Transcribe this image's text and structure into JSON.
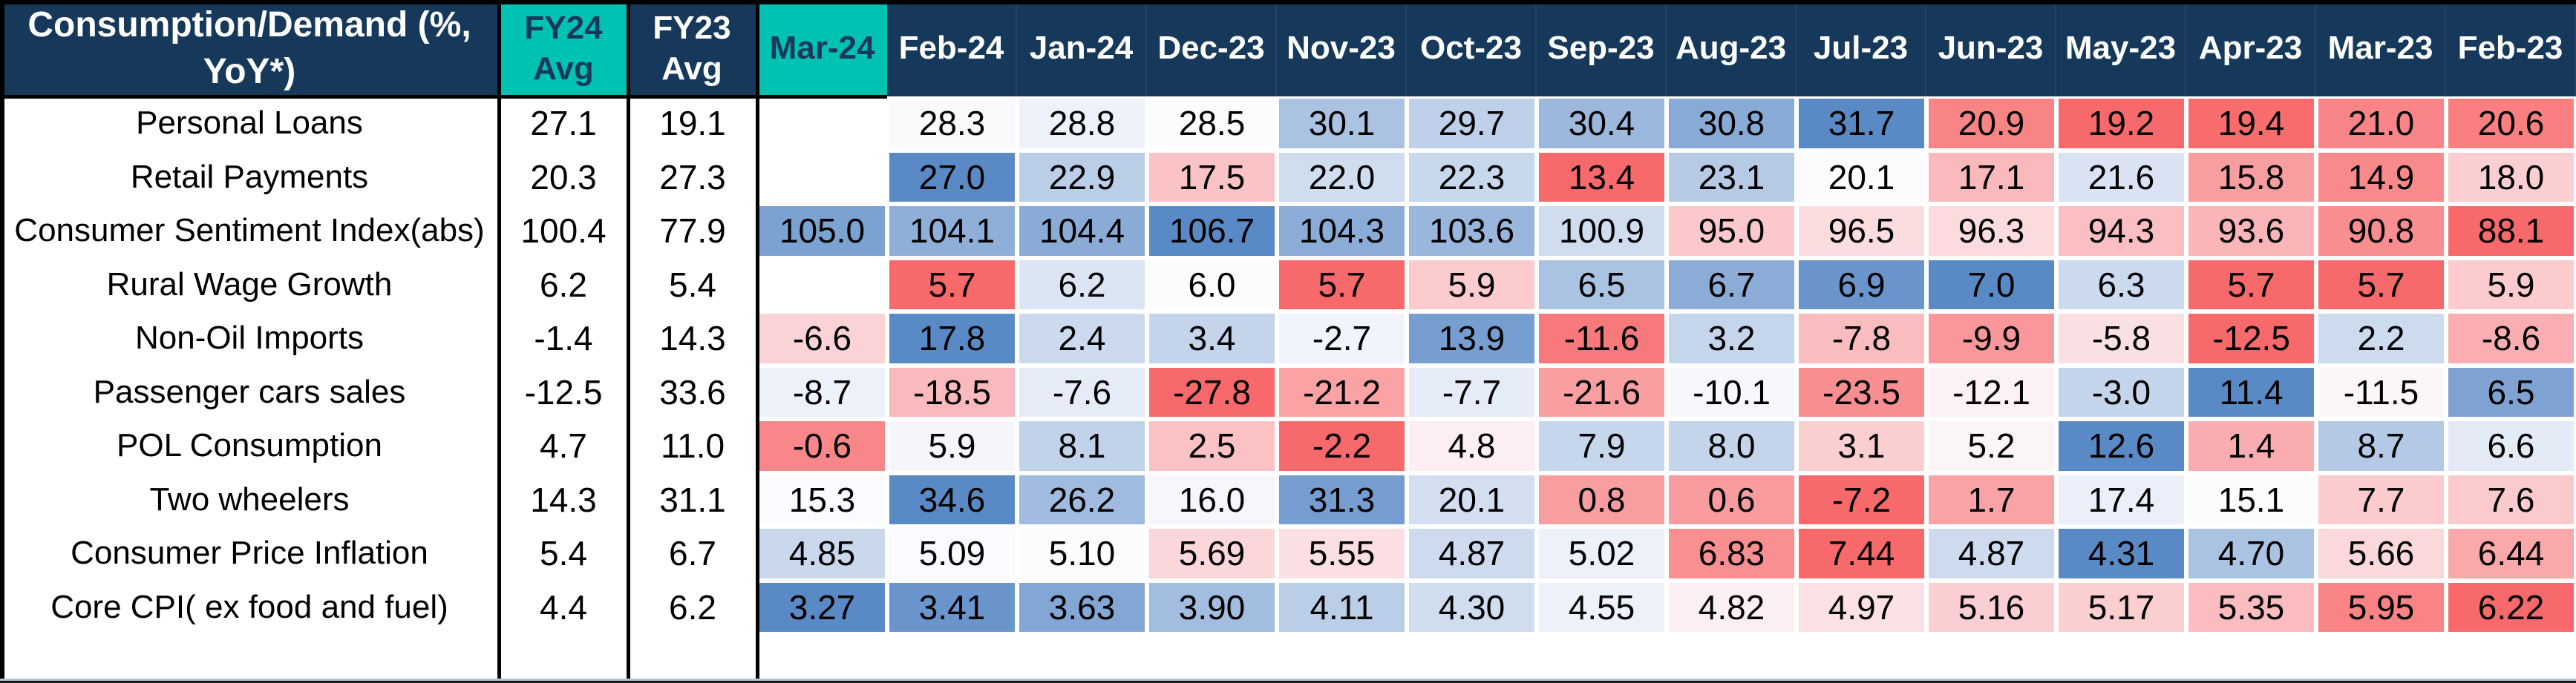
{
  "colors": {
    "header_navy": "#16395B",
    "header_teal": "#00C2B3",
    "header_text": "#FFFFFF",
    "teal_header_text": "#16395B",
    "cell_text": "#000000",
    "border_black": "#000000",
    "bottom_strip_light": "#B3C6D4",
    "bottom_strip_dark": "#1A1A1A"
  },
  "chart_data": {
    "type": "heatmap",
    "title": "Consumption/Demand (%, YoY*)",
    "corner_label": "Consumption/Demand (%, YoY*)",
    "avg_columns": [
      "FY24 Avg",
      "FY23 Avg"
    ],
    "columns": [
      "Mar-24",
      "Feb-24",
      "Jan-24",
      "Dec-23",
      "Nov-23",
      "Oct-23",
      "Sep-23",
      "Aug-23",
      "Jul-23",
      "Jun-23",
      "May-23",
      "Apr-23",
      "Mar-23",
      "Feb-23"
    ],
    "teal_headers": [
      "FY24 Avg",
      "Mar-24"
    ],
    "color_scale": {
      "low": "#F8696B",
      "mid": "#FCFCFF",
      "high": "#5A8AC6",
      "midpoint": "row median",
      "legend": "red = weak, blue = strong; inverted for inflation rows"
    },
    "rows": [
      {
        "label": "Personal Loans",
        "fy24_avg": "27.1",
        "fy23_avg": "19.1",
        "invert_scale": false,
        "values": [
          "",
          "28.3",
          "28.8",
          "28.5",
          "30.1",
          "29.7",
          "30.4",
          "30.8",
          "31.7",
          "20.9",
          "19.2",
          "19.4",
          "21.0",
          "20.6"
        ]
      },
      {
        "label": "Retail Payments",
        "fy24_avg": "20.3",
        "fy23_avg": "27.3",
        "invert_scale": false,
        "values": [
          "",
          "27.0",
          "22.9",
          "17.5",
          "22.0",
          "22.3",
          "13.4",
          "23.1",
          "20.1",
          "17.1",
          "21.6",
          "15.8",
          "14.9",
          "18.0"
        ]
      },
      {
        "label": "Consumer Sentiment Index(abs)",
        "fy24_avg": "100.4",
        "fy23_avg": "77.9",
        "invert_scale": false,
        "values": [
          "105.0",
          "104.1",
          "104.4",
          "106.7",
          "104.3",
          "103.6",
          "100.9",
          "95.0",
          "96.5",
          "96.3",
          "94.3",
          "93.6",
          "90.8",
          "88.1"
        ]
      },
      {
        "label": "Rural Wage Growth",
        "fy24_avg": "6.2",
        "fy23_avg": "5.4",
        "invert_scale": false,
        "values": [
          "",
          "5.7",
          "6.2",
          "6.0",
          "5.7",
          "5.9",
          "6.5",
          "6.7",
          "6.9",
          "7.0",
          "6.3",
          "5.7",
          "5.7",
          "5.9"
        ]
      },
      {
        "label": "Non-Oil Imports",
        "fy24_avg": "-1.4",
        "fy23_avg": "14.3",
        "invert_scale": false,
        "values": [
          "-6.6",
          "17.8",
          "2.4",
          "3.4",
          "-2.7",
          "13.9",
          "-11.6",
          "3.2",
          "-7.8",
          "-9.9",
          "-5.8",
          "-12.5",
          "2.2",
          "-8.6"
        ]
      },
      {
        "label": "Passenger cars sales",
        "fy24_avg": "-12.5",
        "fy23_avg": "33.6",
        "invert_scale": false,
        "values": [
          "-8.7",
          "-18.5",
          "-7.6",
          "-27.8",
          "-21.2",
          "-7.7",
          "-21.6",
          "-10.1",
          "-23.5",
          "-12.1",
          "-3.0",
          "11.4",
          "-11.5",
          "6.5"
        ]
      },
      {
        "label": "POL Consumption",
        "fy24_avg": "4.7",
        "fy23_avg": "11.0",
        "invert_scale": false,
        "values": [
          "-0.6",
          "5.9",
          "8.1",
          "2.5",
          "-2.2",
          "4.8",
          "7.9",
          "8.0",
          "3.1",
          "5.2",
          "12.6",
          "1.4",
          "8.7",
          "6.6"
        ]
      },
      {
        "label": "Two wheelers",
        "fy24_avg": "14.3",
        "fy23_avg": "31.1",
        "invert_scale": false,
        "values": [
          "15.3",
          "34.6",
          "26.2",
          "16.0",
          "31.3",
          "20.1",
          "0.8",
          "0.6",
          "-7.2",
          "1.7",
          "17.4",
          "15.1",
          "7.7",
          "7.6"
        ]
      },
      {
        "label": "Consumer Price Inflation",
        "fy24_avg": "5.4",
        "fy23_avg": "6.7",
        "invert_scale": true,
        "values": [
          "4.85",
          "5.09",
          "5.10",
          "5.69",
          "5.55",
          "4.87",
          "5.02",
          "6.83",
          "7.44",
          "4.87",
          "4.31",
          "4.70",
          "5.66",
          "6.44"
        ]
      },
      {
        "label": "Core CPI( ex food and fuel)",
        "fy24_avg": "4.4",
        "fy23_avg": "6.2",
        "invert_scale": true,
        "values": [
          "3.27",
          "3.41",
          "3.63",
          "3.90",
          "4.11",
          "4.30",
          "4.55",
          "4.82",
          "4.97",
          "5.16",
          "5.17",
          "5.35",
          "5.95",
          "6.22"
        ]
      }
    ]
  }
}
